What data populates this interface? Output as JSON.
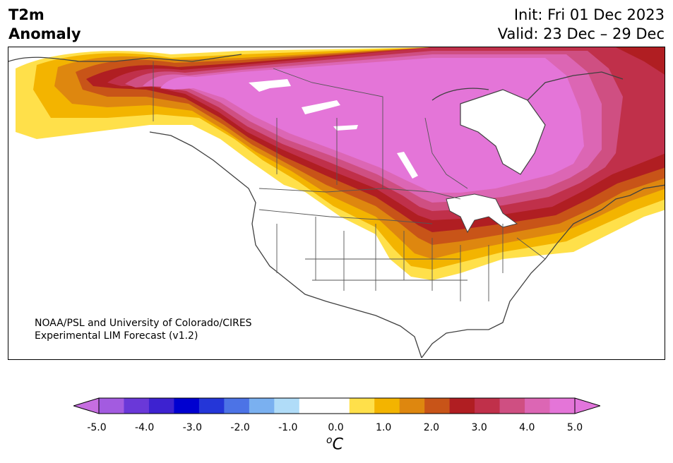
{
  "header": {
    "title_line1": "T2m",
    "title_line2": "Anomaly",
    "init": "Init: Fri 01 Dec 2023",
    "valid": "Valid: 23 Dec – 29 Dec"
  },
  "credit": {
    "line1": "NOAA/PSL and University of Colorado/CIRES",
    "line2": "Experimental LIM Forecast (v1.2)"
  },
  "colorbar": {
    "colors": [
      "#a35be0",
      "#6a38d8",
      "#3d22d0",
      "#0000d0",
      "#2436d8",
      "#4c73e6",
      "#7ab0f0",
      "#b0dcf8",
      "#ffffff",
      "#ffffff",
      "#ffe04a",
      "#f3b400",
      "#de870f",
      "#c85418",
      "#b01e22",
      "#c0304a",
      "#cf4f82",
      "#dc66b4",
      "#e475d8"
    ],
    "left_extend": "#c66ee0",
    "right_extend": "#e275dc",
    "tick_labels": [
      "-5.0",
      "-4.0",
      "-3.0",
      "-2.0",
      "-1.0",
      "0.0",
      "1.0",
      "2.0",
      "3.0",
      "4.0",
      "5.0"
    ],
    "unit_base": "C",
    "unit_sup": "o"
  },
  "map_colors": {
    "land": "#ffffff",
    "coast": "#404040",
    "plus_half": "#ffe04a",
    "plus_1": "#f3b400",
    "plus_1_5": "#de870f",
    "plus_2": "#c85418",
    "plus_3": "#b01e22",
    "plus_3_5": "#c0304a",
    "plus_4": "#cf4f82",
    "plus_4_5": "#dc66b4",
    "plus_5": "#e475d8"
  }
}
